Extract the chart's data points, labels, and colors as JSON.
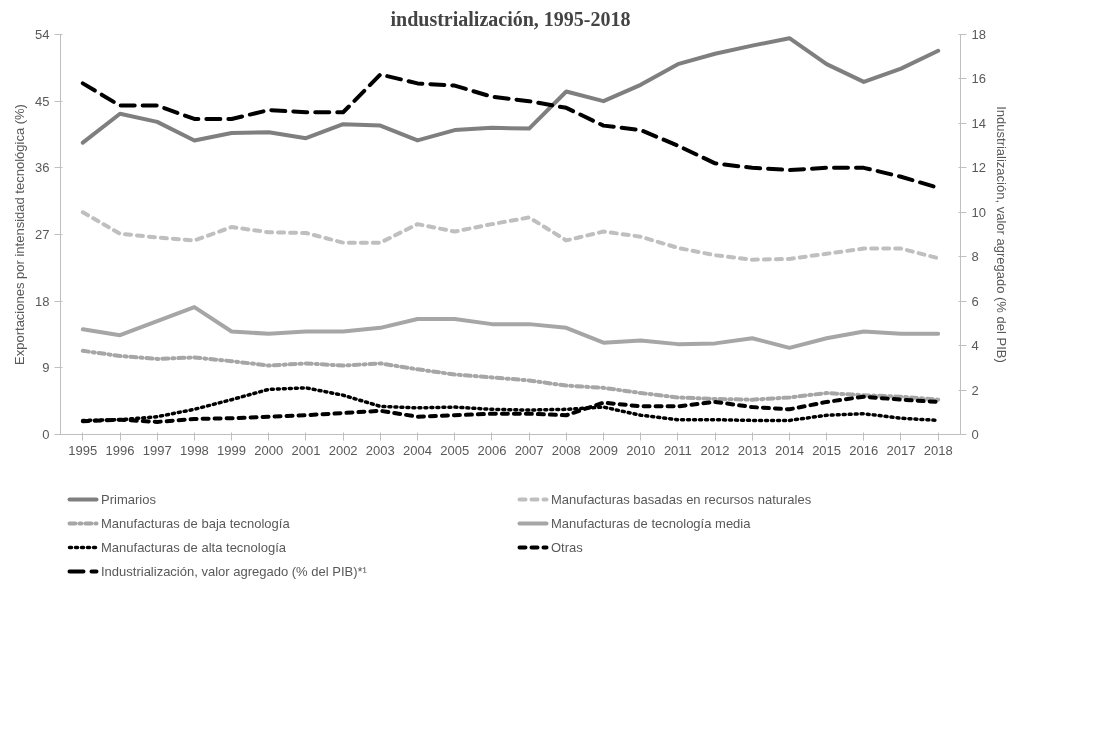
{
  "chart_data": {
    "type": "line",
    "title": "industrialización, 1995-2018",
    "ylabel": "Exportaciones por intensidad tecnológica (%)",
    "y2label": "Industrialización, valor agregado (% del PIB)",
    "categories": [
      "1995",
      "1996",
      "1997",
      "1998",
      "1999",
      "2000",
      "2001",
      "2002",
      "2003",
      "2004",
      "2005",
      "2006",
      "2007",
      "2008",
      "2009",
      "2010",
      "2011",
      "2012",
      "2013",
      "2014",
      "2015",
      "2016",
      "2017",
      "2018"
    ],
    "ylim": [
      0,
      54
    ],
    "yticks": [
      0,
      9,
      18,
      27,
      36,
      45,
      54
    ],
    "y2lim": [
      0,
      18
    ],
    "y2ticks": [
      0,
      2,
      4,
      6,
      8,
      10,
      12,
      14,
      16,
      18
    ],
    "grid": false,
    "legend": "bottom",
    "marker": "none",
    "series": [
      {
        "name": "Primarios",
        "color": "#7f7f7f",
        "line_style": "solid",
        "values": [
          39.4,
          43.3,
          42.2,
          39.7,
          40.7,
          40.8,
          40,
          41.9,
          41.7,
          39.7,
          41.1,
          41.4,
          41.3,
          46.3,
          45,
          47.2,
          50,
          51.4,
          52.5,
          53.5,
          50,
          47.6,
          49.4,
          51.8
        ]
      },
      {
        "name": "Manufacturas basadas en recursos naturales",
        "color": "#bfbfbf",
        "line_style": "dashed",
        "values": [
          30,
          27.1,
          26.6,
          26.2,
          28,
          27.3,
          27.2,
          25.9,
          25.9,
          28.4,
          27.4,
          28.4,
          29.3,
          26.2,
          27.4,
          26.7,
          25.2,
          24.2,
          23.6,
          23.7,
          24.4,
          25.1,
          25.1,
          23.8
        ]
      },
      {
        "name": "Manufacturas de baja tecnología",
        "color": "#a6a6a6",
        "line_style": "dashdot",
        "values": [
          11.3,
          10.6,
          10.2,
          10.4,
          9.9,
          9.3,
          9.6,
          9.3,
          9.6,
          8.8,
          8.1,
          7.7,
          7.3,
          6.6,
          6.3,
          5.6,
          5,
          4.8,
          4.7,
          5,
          5.6,
          5.3,
          5.1,
          4.7
        ]
      },
      {
        "name": "Manufacturas de tecnología media",
        "color": "#a6a6a6",
        "line_style": "solid",
        "values": [
          14.2,
          13.4,
          15.3,
          17.2,
          13.9,
          13.6,
          13.9,
          13.9,
          14.4,
          15.6,
          15.6,
          14.9,
          14.9,
          14.4,
          12.4,
          12.7,
          12.2,
          12.3,
          13,
          11.7,
          13,
          13.9,
          13.6,
          13.6
        ]
      },
      {
        "name": "Manufacturas de alta tecnología",
        "color": "#000000",
        "line_style": "dotted",
        "values": [
          1.9,
          2,
          2.4,
          3.4,
          4.7,
          6.1,
          6.3,
          5.3,
          3.8,
          3.6,
          3.7,
          3.4,
          3.3,
          3.4,
          3.7,
          2.6,
          2,
          2,
          1.9,
          1.9,
          2.6,
          2.8,
          2.2,
          1.9
        ]
      },
      {
        "name": "Otras",
        "color": "#000000",
        "line_style": "dashed",
        "values": [
          1.8,
          2,
          1.7,
          2.1,
          2.2,
          2.4,
          2.6,
          2.9,
          3.2,
          2.4,
          2.6,
          2.8,
          2.8,
          2.6,
          4.3,
          3.8,
          3.8,
          4.4,
          3.7,
          3.4,
          4.4,
          5.1,
          4.7,
          4.4
        ]
      },
      {
        "name": "Industrialización, valor agregado (% del PIB)*¹",
        "color": "#000000",
        "line_style": "dashed",
        "axis": "y2",
        "values": [
          15.8,
          14.8,
          14.8,
          14.2,
          14.2,
          14.6,
          14.5,
          14.5,
          16.2,
          15.8,
          15.7,
          15.2,
          15.0,
          14.7,
          13.9,
          13.7,
          13.0,
          12.2,
          12.0,
          11.9,
          12.0,
          12.0,
          11.6,
          11.1
        ]
      }
    ]
  }
}
